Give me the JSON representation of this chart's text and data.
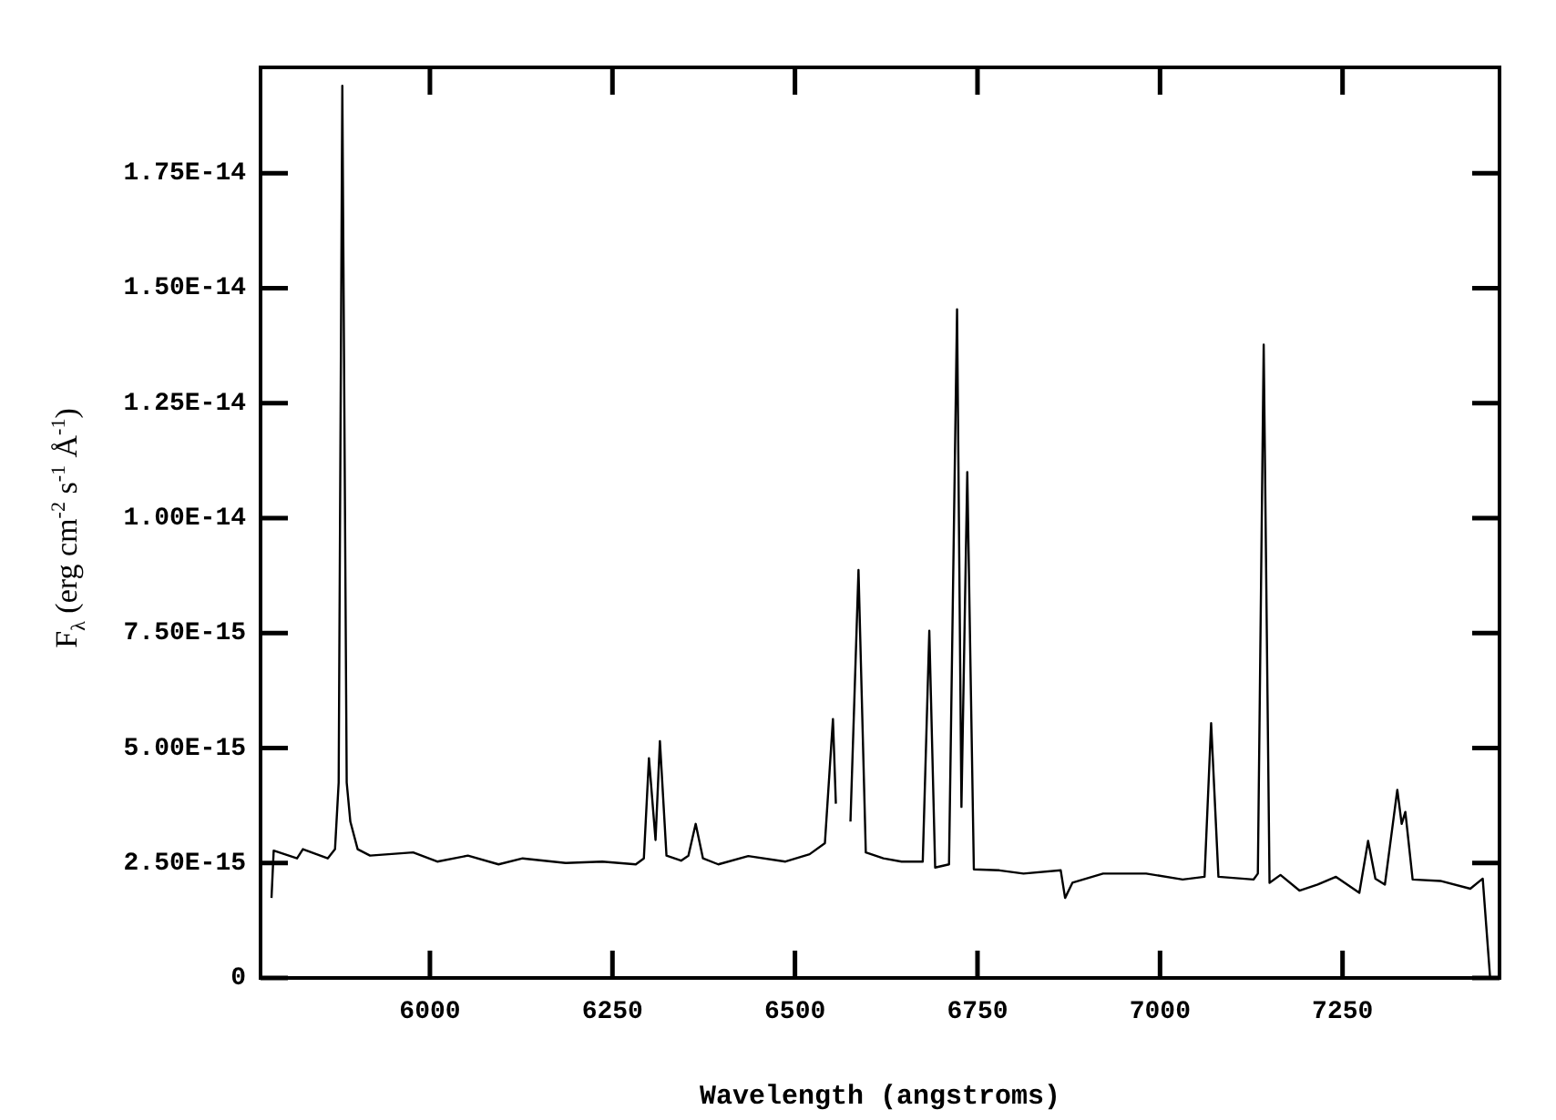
{
  "chart_data": {
    "type": "line",
    "xlabel": "Wavelength (angstroms)",
    "ylabel": "F$_{λ}$ (erg cm$^{-2}$ s$^{-1}$ Å$^{-1}$)",
    "xlim": [
      5768,
      7465
    ],
    "ylim": [
      0,
      1.98e-14
    ],
    "xticks": [
      6000,
      6250,
      6500,
      6750,
      7000,
      7250
    ],
    "yticks": [
      0,
      {
        "value": 2.5e-15,
        "label": "2.50E-15"
      },
      {
        "value": 5e-15,
        "label": "5.00E-15"
      },
      {
        "value": 7.5e-15,
        "label": "7.50E-15"
      },
      {
        "value": 1e-14,
        "label": "1.00E-14"
      },
      {
        "value": 1.25e-14,
        "label": "1.25E-14"
      },
      {
        "value": 1.5e-14,
        "label": "1.50E-14"
      },
      {
        "value": 1.75e-14,
        "label": "1.75E-14"
      }
    ],
    "grid": false,
    "legend": false,
    "marker": "none",
    "line_style": "solid",
    "series": [
      {
        "color": "#000000",
        "x": [
          5783,
          5786,
          5818,
          5826,
          5860,
          5870,
          5875,
          5880,
          5886,
          5891,
          5901,
          5918,
          5977,
          6010,
          6052,
          6094,
          6127,
          6186,
          6236,
          6282,
          6293,
          6300,
          6309,
          6315,
          6324,
          6344,
          6354,
          6364,
          6374,
          6395,
          6436,
          6487,
          6520,
          6541,
          6552,
          6556,
          6559,
          6570,
          6573,
          6576,
          6587,
          6597,
          6621,
          6646,
          6675,
          6684,
          6692,
          6711,
          6722,
          6728,
          6736,
          6745,
          6780,
          6813,
          6864,
          6870,
          6880,
          6922,
          6981,
          7031,
          7061,
          7070,
          7080,
          7128,
          7134,
          7142,
          7150,
          7165,
          7191,
          7216,
          7241,
          7273,
          7285,
          7295,
          7308,
          7325,
          7331,
          7336,
          7346,
          7384,
          7425,
          7442,
          7452
        ],
        "values": [
          1.74e-15,
          2.77e-15,
          2.6e-15,
          2.8e-15,
          2.6e-15,
          2.8e-15,
          4.25e-15,
          1.94e-14,
          4.25e-15,
          3.4e-15,
          2.8e-15,
          2.66e-15,
          2.73e-15,
          2.53e-15,
          2.66e-15,
          2.47e-15,
          2.6e-15,
          2.5e-15,
          2.53e-15,
          2.47e-15,
          2.6e-15,
          4.78e-15,
          3e-15,
          5.15e-15,
          2.66e-15,
          2.55e-15,
          2.66e-15,
          3.35e-15,
          2.6e-15,
          2.47e-15,
          2.65e-15,
          2.53e-15,
          2.69e-15,
          2.93e-15,
          5.63e-15,
          3.79e-15,
          null,
          null,
          null,
          3.4e-15,
          8.87e-15,
          2.73e-15,
          2.6e-15,
          2.53e-15,
          2.53e-15,
          7.55e-15,
          2.4e-15,
          2.47e-15,
          1.454e-14,
          3.72e-15,
          1.1e-14,
          2.36e-15,
          2.34e-15,
          2.27e-15,
          2.34e-15,
          1.74e-15,
          2.07e-15,
          2.27e-15,
          2.27e-15,
          2.14e-15,
          2.2e-15,
          5.54e-15,
          2.2e-15,
          2.14e-15,
          2.27e-15,
          1.377e-14,
          2.07e-15,
          2.24e-15,
          1.9e-15,
          2.03e-15,
          2.2e-15,
          1.85e-15,
          2.98e-15,
          2.16e-15,
          2.03e-15,
          4.09e-15,
          3.35e-15,
          3.61e-15,
          2.14e-15,
          2.11e-15,
          1.94e-15,
          2.16e-15,
          3e-17
        ]
      }
    ]
  }
}
